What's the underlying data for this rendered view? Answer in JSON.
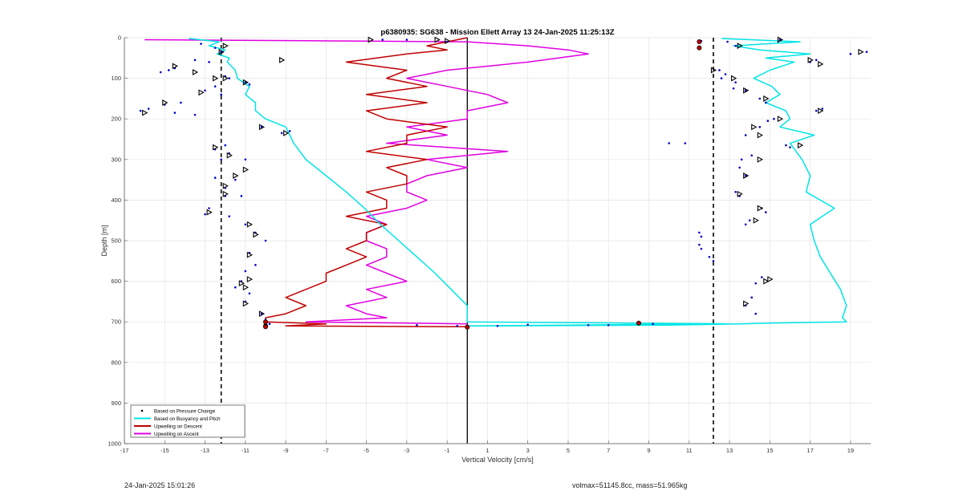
{
  "footer": {
    "timestamp": "24-Jan-2025 15:01:26",
    "volmax": "volmax=51145.8cc, mass=51.965kg"
  },
  "chart_data": {
    "type": "line",
    "title": "p6380935: SG638 - Mission Ellett Array 13 24-Jan-2025 11:25:13Z",
    "xlabel": "Vertical Velocity [cm/s]",
    "ylabel": "Depth [m]",
    "xlim": [
      -17,
      20
    ],
    "ylim": [
      1000,
      0
    ],
    "y_reversed": true,
    "x_ticks": [
      -17,
      -15,
      -13,
      -11,
      -9,
      -7,
      -5,
      -3,
      -1,
      1,
      3,
      5,
      7,
      9,
      11,
      13,
      15,
      17,
      19
    ],
    "y_ticks": [
      0,
      100,
      200,
      300,
      400,
      500,
      600,
      700,
      800,
      900,
      1000
    ],
    "grid": true,
    "legend_position": "bottom-left",
    "reference_lines": [
      {
        "x": -12.2,
        "style": "dashed",
        "color": "#000000"
      },
      {
        "x": 12.2,
        "style": "dashed",
        "color": "#000000"
      },
      {
        "x": 0,
        "style": "solid",
        "color": "#000000"
      }
    ],
    "series": [
      {
        "name": "Based on Pressure Change",
        "style": "dots",
        "color": "#0000c8",
        "points": [
          [
            -13.2,
            15
          ],
          [
            -12.5,
            25
          ],
          [
            -12.2,
            35
          ],
          [
            -14.5,
            75
          ],
          [
            -14.8,
            80
          ],
          [
            -15.2,
            85
          ],
          [
            -13.5,
            55
          ],
          [
            -12.8,
            60
          ],
          [
            -12.0,
            95
          ],
          [
            -11.8,
            100
          ],
          [
            -12.5,
            120
          ],
          [
            -13.0,
            130
          ],
          [
            -12.2,
            140
          ],
          [
            -14.2,
            160
          ],
          [
            -15.0,
            165
          ],
          [
            -15.8,
            175
          ],
          [
            -16.2,
            180
          ],
          [
            -14.5,
            185
          ],
          [
            -13.5,
            190
          ],
          [
            -11.0,
            110
          ],
          [
            -10.8,
            115
          ],
          [
            -9.2,
            235
          ],
          [
            -8.8,
            230
          ],
          [
            -10.2,
            220
          ],
          [
            -12.0,
            265
          ],
          [
            -12.5,
            275
          ],
          [
            -11.8,
            285
          ],
          [
            -12.2,
            300
          ],
          [
            -11.0,
            300
          ],
          [
            -12.5,
            345
          ],
          [
            -11.5,
            350
          ],
          [
            -12.0,
            370
          ],
          [
            -12.0,
            390
          ],
          [
            -11.2,
            390
          ],
          [
            -12.8,
            420
          ],
          [
            -13.0,
            435
          ],
          [
            -11.8,
            440
          ],
          [
            -11.0,
            460
          ],
          [
            -10.5,
            480
          ],
          [
            -10.0,
            500
          ],
          [
            -10.8,
            530
          ],
          [
            -10.5,
            560
          ],
          [
            -11.0,
            575
          ],
          [
            -11.2,
            600
          ],
          [
            -11.5,
            615
          ],
          [
            -10.8,
            630
          ],
          [
            -11.0,
            650
          ],
          [
            -10.2,
            680
          ],
          [
            -10.0,
            695
          ],
          [
            -9.8,
            705
          ],
          [
            11.5,
            480
          ],
          [
            11.6,
            490
          ],
          [
            11.5,
            510
          ],
          [
            11.6,
            520
          ],
          [
            12.2,
            550
          ],
          [
            12.0,
            540
          ],
          [
            12.5,
            80
          ],
          [
            12.8,
            90
          ],
          [
            12.6,
            100
          ],
          [
            13.3,
            110
          ],
          [
            13.2,
            125
          ],
          [
            13.8,
            130
          ],
          [
            14.5,
            150
          ],
          [
            14.8,
            160
          ],
          [
            15.2,
            200
          ],
          [
            14.9,
            205
          ],
          [
            13.8,
            240
          ],
          [
            14.5,
            220
          ],
          [
            15.8,
            265
          ],
          [
            16.0,
            270
          ],
          [
            13.6,
            300
          ],
          [
            14.1,
            290
          ],
          [
            13.5,
            320
          ],
          [
            13.8,
            340
          ],
          [
            13.3,
            380
          ],
          [
            13.5,
            390
          ],
          [
            14.6,
            420
          ],
          [
            14.8,
            430
          ],
          [
            14.0,
            450
          ],
          [
            13.8,
            460
          ],
          [
            14.6,
            590
          ],
          [
            14.3,
            605
          ],
          [
            14.1,
            640
          ],
          [
            13.8,
            660
          ],
          [
            14.3,
            680
          ],
          [
            17.0,
            60
          ],
          [
            17.3,
            55
          ],
          [
            17.3,
            180
          ],
          [
            17.6,
            175
          ],
          [
            19.8,
            35
          ],
          [
            19.0,
            40
          ],
          [
            13.3,
            20
          ],
          [
            12.9,
            10
          ],
          [
            15.5,
            5
          ],
          [
            -4.2,
            5
          ],
          [
            -3.0,
            5
          ],
          [
            -1.0,
            10
          ],
          [
            8.5,
            705
          ],
          [
            9.2,
            705
          ],
          [
            6.0,
            708
          ],
          [
            7.0,
            708
          ],
          [
            11.6,
            8
          ],
          [
            11.5,
            25
          ],
          [
            -0.5,
            710
          ],
          [
            1.5,
            710
          ],
          [
            3.0,
            707
          ],
          [
            -2.5,
            708
          ],
          [
            10.8,
            260
          ],
          [
            10.0,
            260
          ]
        ]
      },
      {
        "name": "Based on Buoyancy and Pitch",
        "style": "line",
        "color": "#00e5e5",
        "depth": [
          2,
          10,
          20,
          30,
          40,
          50,
          60,
          80,
          100,
          120,
          140,
          160,
          180,
          200,
          220,
          240,
          260,
          300,
          340,
          380,
          420,
          460,
          500,
          540,
          580,
          620,
          660,
          690,
          700,
          703,
          705,
          708,
          710
        ],
        "left": [
          -13.8,
          -12.3,
          -12.8,
          -12.0,
          -12.4,
          -11.8,
          -11.9,
          -11.5,
          -11.4,
          -10.8,
          -11.0,
          -10.5,
          -10.5,
          -10.0,
          -9.0,
          -8.8,
          -8.6,
          -8.0,
          -7.0,
          -6.0,
          -5.1,
          -4.3,
          -3.4,
          -2.5,
          -1.6,
          -0.8,
          0.0,
          0.0,
          0.0,
          8.0,
          13.0,
          5.0,
          0.0
        ],
        "right": [
          12.6,
          16.5,
          13.2,
          14.5,
          17.0,
          14.8,
          16.2,
          15.0,
          14.2,
          15.1,
          15.5,
          14.8,
          15.8,
          16.0,
          15.5,
          17.2,
          16.0,
          16.6,
          17.0,
          16.8,
          18.2,
          17.0,
          17.2,
          17.5,
          18.0,
          18.5,
          18.8,
          18.6,
          18.8,
          15.0,
          13.5,
          10.0,
          0.0
        ]
      },
      {
        "name": "Upwelling on Descent",
        "style": "line",
        "color": "#c00000",
        "depth": [
          0,
          10,
          20,
          30,
          40,
          60,
          80,
          100,
          120,
          140,
          160,
          180,
          200,
          220,
          240,
          260,
          280,
          300,
          320,
          340,
          360,
          380,
          400,
          420,
          440,
          460,
          480,
          500,
          520,
          540,
          560,
          580,
          600,
          620,
          640,
          660,
          680,
          690,
          700,
          705,
          710,
          712
        ],
        "values": [
          0,
          -1,
          -2,
          -1,
          -3,
          -6,
          -3,
          -4,
          -2,
          -5,
          -2,
          -5,
          -4,
          -1,
          -3,
          -3,
          -5,
          -2,
          -4,
          -3,
          -3,
          -5,
          -4,
          -4,
          -6,
          -4,
          -5,
          -5,
          -6,
          -5,
          -6,
          -7,
          -7,
          -8,
          -9,
          -8,
          -9,
          -10,
          -10,
          -7,
          -9,
          0
        ]
      },
      {
        "name": "Upwelling on Ascent",
        "style": "line",
        "color": "#e000e0",
        "depth": [
          5,
          10,
          20,
          30,
          40,
          60,
          80,
          100,
          120,
          140,
          160,
          180,
          200,
          220,
          240,
          260,
          280,
          300,
          320,
          340,
          360,
          380,
          400,
          420,
          440,
          460,
          480,
          500,
          520,
          540,
          560,
          580,
          600,
          620,
          640,
          660,
          680,
          690,
          700,
          705
        ],
        "values": [
          -16,
          0,
          3,
          5,
          6,
          3,
          -1,
          -3,
          -1,
          1,
          2,
          0,
          0,
          -3,
          -1,
          -4,
          2,
          -2,
          0,
          -2,
          -3,
          -3,
          -2,
          -3,
          -5,
          -4,
          -5,
          -5,
          -4,
          -4,
          -5,
          -4,
          -3,
          -5,
          -4,
          -6,
          -5,
          -4,
          -8,
          0
        ]
      }
    ],
    "markers": [
      {
        "type": "triangle-open",
        "points": [
          [
            -12.0,
            20
          ],
          [
            -12.2,
            35
          ],
          [
            -9.2,
            55
          ],
          [
            -14.5,
            70
          ],
          [
            -13.5,
            85
          ],
          [
            -12.5,
            100
          ],
          [
            -12.0,
            100
          ],
          [
            -13.2,
            135
          ],
          [
            -15.0,
            160
          ],
          [
            -16.0,
            185
          ],
          [
            -11.0,
            110
          ],
          [
            -9.0,
            235
          ],
          [
            -10.2,
            220
          ],
          [
            -12.5,
            270
          ],
          [
            -11.8,
            290
          ],
          [
            -11.0,
            325
          ],
          [
            -11.5,
            340
          ],
          [
            -12.0,
            365
          ],
          [
            -12.0,
            385
          ],
          [
            -12.8,
            430
          ],
          [
            -10.8,
            460
          ],
          [
            -10.5,
            485
          ],
          [
            -10.8,
            535
          ],
          [
            -10.8,
            595
          ],
          [
            -11.2,
            605
          ],
          [
            -11.0,
            615
          ],
          [
            -11.0,
            655
          ],
          [
            -10.2,
            680
          ],
          [
            -4.8,
            5
          ],
          [
            -1.5,
            5
          ],
          [
            12.2,
            80
          ],
          [
            13.5,
            20
          ],
          [
            15.5,
            5
          ],
          [
            13.2,
            100
          ],
          [
            13.8,
            130
          ],
          [
            14.8,
            150
          ],
          [
            15.5,
            200
          ],
          [
            14.2,
            220
          ],
          [
            14.5,
            240
          ],
          [
            16.5,
            265
          ],
          [
            14.5,
            300
          ],
          [
            13.8,
            340
          ],
          [
            13.5,
            385
          ],
          [
            14.5,
            420
          ],
          [
            14.3,
            450
          ],
          [
            15.0,
            595
          ],
          [
            14.8,
            600
          ],
          [
            13.8,
            655
          ],
          [
            17.0,
            55
          ],
          [
            17.5,
            65
          ],
          [
            17.5,
            180
          ],
          [
            19.5,
            35
          ],
          [
            -1.0,
            8
          ]
        ]
      },
      {
        "type": "dot-red",
        "points": [
          [
            -10,
            700
          ],
          [
            -10,
            710
          ],
          [
            0,
            713
          ],
          [
            8.5,
            703
          ],
          [
            11.5,
            10
          ],
          [
            11.5,
            25
          ],
          [
            -10,
            712
          ]
        ]
      }
    ]
  }
}
